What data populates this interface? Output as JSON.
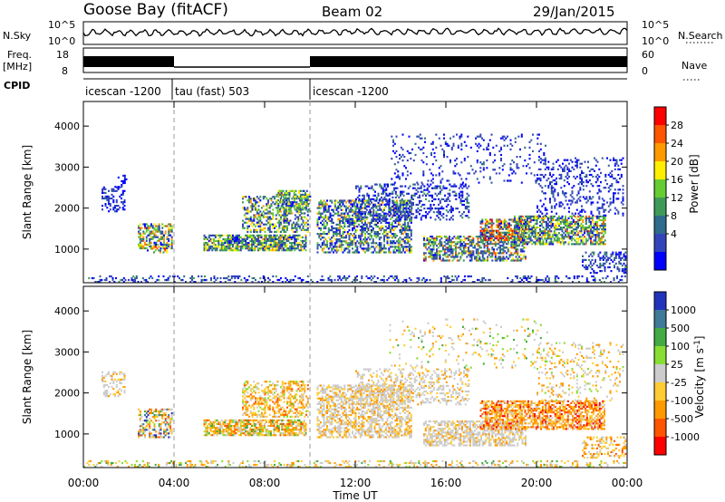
{
  "header": {
    "station": "Goose Bay (fitACF)",
    "beam": "Beam 02",
    "date": "29/Jan/2015"
  },
  "chart_data": [
    {
      "type": "line",
      "panel": "noise",
      "left_label": "N.Sky",
      "right_label": "N.Search",
      "left_ticks": [
        "10^5",
        "10^0"
      ],
      "right_ticks": [
        "10^5",
        "10^0"
      ],
      "ylim": [
        0,
        5
      ],
      "scale": "log"
    },
    {
      "type": "line",
      "panel": "frequency",
      "left_label_1": "Freq.",
      "left_label_2": "[MHz]",
      "right_label": "Nave",
      "left_ticks": [
        "18",
        "8"
      ],
      "right_ticks": [
        "60",
        "0"
      ],
      "ylim": [
        8,
        18
      ],
      "segments": [
        {
          "start_hour": 0.0,
          "end_hour": 4.0,
          "level": "high"
        },
        {
          "start_hour": 4.0,
          "end_hour": 10.0,
          "level": "low"
        },
        {
          "start_hour": 10.0,
          "end_hour": 24.0,
          "level": "high"
        }
      ]
    },
    {
      "type": "table",
      "panel": "cpid",
      "label": "CPID",
      "segments": [
        {
          "start_hour": 0.0,
          "end_hour": 4.0,
          "name": "icescan -1200"
        },
        {
          "start_hour": 4.0,
          "end_hour": 10.0,
          "name": "tau (fast) 503"
        },
        {
          "start_hour": 10.0,
          "end_hour": 24.0,
          "name": "icescan -1200"
        }
      ]
    },
    {
      "type": "heatmap",
      "panel": "power",
      "ylabel": "Slant Range [km]",
      "y_ticks": [
        "1000",
        "2000",
        "3000",
        "4000"
      ],
      "ylim": [
        180,
        4600
      ],
      "colorbar_label": "Power [dB]",
      "colorbar_ticks": [
        "28",
        "24",
        "20",
        "16",
        "12",
        "8",
        "4"
      ],
      "colors": [
        "#0000ff",
        "#3344bb",
        "#2f6b8a",
        "#3f9a5a",
        "#66cc33",
        "#ffee00",
        "#ff9900",
        "#ff5500",
        "#ff0000"
      ],
      "clusters": [
        {
          "h0": 0.8,
          "h1": 1.8,
          "r0": 1900,
          "r1": 2500,
          "density": 0.35,
          "weights": [
            4,
            4,
            1,
            0,
            0,
            0,
            0,
            0,
            0
          ]
        },
        {
          "h0": 1.3,
          "h1": 2.0,
          "r0": 2500,
          "r1": 2800,
          "density": 0.2,
          "weights": [
            4,
            3,
            0,
            0,
            0,
            0,
            0,
            0,
            0
          ]
        },
        {
          "h0": 2.4,
          "h1": 3.9,
          "r0": 1000,
          "r1": 1600,
          "density": 0.55,
          "weights": [
            2,
            3,
            2,
            2,
            2,
            1,
            2,
            1,
            0
          ]
        },
        {
          "h0": 2.8,
          "h1": 3.7,
          "r0": 900,
          "r1": 1100,
          "density": 0.5,
          "weights": [
            1,
            2,
            2,
            2,
            2,
            2,
            2,
            2,
            1
          ]
        },
        {
          "h0": 5.3,
          "h1": 9.8,
          "r0": 950,
          "r1": 1350,
          "density": 0.75,
          "weights": [
            1,
            3,
            2,
            3,
            3,
            2,
            1,
            0,
            0
          ]
        },
        {
          "h0": 7.0,
          "h1": 9.9,
          "r0": 1400,
          "r1": 2300,
          "density": 0.45,
          "weights": [
            1,
            3,
            2,
            3,
            2,
            2,
            1,
            0,
            0
          ]
        },
        {
          "h0": 8.5,
          "h1": 10.0,
          "r0": 1900,
          "r1": 2400,
          "density": 0.5,
          "weights": [
            1,
            2,
            2,
            3,
            3,
            2,
            1,
            0,
            0
          ]
        },
        {
          "h0": 10.3,
          "h1": 14.5,
          "r0": 900,
          "r1": 2200,
          "density": 0.55,
          "weights": [
            2,
            4,
            2,
            2,
            2,
            1,
            1,
            0,
            0
          ]
        },
        {
          "h0": 12.0,
          "h1": 17.0,
          "r0": 1700,
          "r1": 2600,
          "density": 0.3,
          "weights": [
            3,
            4,
            1,
            1,
            0,
            0,
            0,
            0,
            0
          ]
        },
        {
          "h0": 13.5,
          "h1": 20.5,
          "r0": 2600,
          "r1": 3800,
          "density": 0.1,
          "weights": [
            3,
            4,
            1,
            0,
            0,
            0,
            0,
            0,
            0
          ]
        },
        {
          "h0": 15.0,
          "h1": 19.5,
          "r0": 700,
          "r1": 1300,
          "density": 0.55,
          "weights": [
            1,
            4,
            2,
            2,
            2,
            1,
            1,
            1,
            0
          ]
        },
        {
          "h0": 17.5,
          "h1": 19.5,
          "r0": 1200,
          "r1": 1700,
          "density": 0.65,
          "weights": [
            1,
            2,
            2,
            2,
            2,
            2,
            3,
            2,
            2
          ]
        },
        {
          "h0": 19.0,
          "h1": 23.0,
          "r0": 1100,
          "r1": 1800,
          "density": 0.65,
          "weights": [
            1,
            3,
            2,
            3,
            3,
            2,
            1,
            1,
            0
          ]
        },
        {
          "h0": 20.0,
          "h1": 23.8,
          "r0": 1800,
          "r1": 3200,
          "density": 0.2,
          "weights": [
            3,
            4,
            1,
            0,
            0,
            0,
            0,
            0,
            0
          ]
        },
        {
          "h0": 22.0,
          "h1": 24.0,
          "r0": 400,
          "r1": 900,
          "density": 0.35,
          "weights": [
            2,
            4,
            1,
            1,
            0,
            0,
            0,
            0,
            0
          ]
        },
        {
          "h0": 0.0,
          "h1": 24.0,
          "r0": 180,
          "r1": 320,
          "density": 0.25,
          "weights": [
            3,
            4,
            2,
            1,
            0,
            0,
            0,
            0,
            0
          ]
        }
      ]
    },
    {
      "type": "heatmap",
      "panel": "velocity",
      "ylabel": "Slant Range [km]",
      "y_ticks": [
        "1000",
        "2000",
        "3000",
        "4000"
      ],
      "ylim": [
        180,
        4600
      ],
      "colorbar_label": "Velocity [m s^-1]",
      "colorbar_ticks": [
        "1000",
        "500",
        "100",
        "25",
        "-25",
        "-100",
        "-500",
        "-1000"
      ],
      "colors": [
        "#2233bb",
        "#3f7a99",
        "#44aa44",
        "#88dd33",
        "#cccccc",
        "#ffcc33",
        "#ff9900",
        "#ff5500",
        "#ff0000"
      ],
      "clusters": [
        {
          "h0": 0.8,
          "h1": 1.8,
          "r0": 1900,
          "r1": 2500,
          "density": 0.35,
          "weights": [
            0,
            0,
            0,
            0,
            5,
            1,
            1,
            0,
            0
          ]
        },
        {
          "h0": 2.4,
          "h1": 3.9,
          "r0": 900,
          "r1": 1600,
          "density": 0.5,
          "weights": [
            1,
            1,
            1,
            1,
            3,
            2,
            2,
            1,
            0
          ]
        },
        {
          "h0": 5.3,
          "h1": 9.8,
          "r0": 950,
          "r1": 1350,
          "density": 0.75,
          "weights": [
            0,
            0,
            1,
            1,
            2,
            3,
            4,
            1,
            0
          ]
        },
        {
          "h0": 7.0,
          "h1": 9.9,
          "r0": 1400,
          "r1": 2300,
          "density": 0.45,
          "weights": [
            0,
            0,
            0,
            1,
            2,
            3,
            4,
            1,
            0
          ]
        },
        {
          "h0": 10.3,
          "h1": 14.5,
          "r0": 900,
          "r1": 2200,
          "density": 0.55,
          "weights": [
            0,
            0,
            0,
            0,
            5,
            2,
            2,
            0,
            0
          ]
        },
        {
          "h0": 12.0,
          "h1": 17.0,
          "r0": 1700,
          "r1": 2600,
          "density": 0.3,
          "weights": [
            0,
            0,
            0,
            0,
            5,
            1,
            1,
            0,
            0
          ]
        },
        {
          "h0": 13.5,
          "h1": 20.5,
          "r0": 2600,
          "r1": 3800,
          "density": 0.08,
          "weights": [
            0,
            0,
            1,
            1,
            4,
            2,
            2,
            0,
            0
          ]
        },
        {
          "h0": 15.0,
          "h1": 19.5,
          "r0": 700,
          "r1": 1300,
          "density": 0.6,
          "weights": [
            0,
            0,
            0,
            0,
            7,
            1,
            1,
            0,
            0
          ]
        },
        {
          "h0": 17.5,
          "h1": 23.0,
          "r0": 1100,
          "r1": 1800,
          "density": 0.65,
          "weights": [
            0,
            0,
            0,
            0,
            2,
            2,
            4,
            2,
            1
          ]
        },
        {
          "h0": 20.0,
          "h1": 23.8,
          "r0": 1800,
          "r1": 3200,
          "density": 0.15,
          "weights": [
            0,
            0,
            0,
            1,
            3,
            2,
            2,
            0,
            0
          ]
        },
        {
          "h0": 22.0,
          "h1": 24.0,
          "r0": 400,
          "r1": 900,
          "density": 0.35,
          "weights": [
            0,
            0,
            0,
            0,
            2,
            3,
            3,
            1,
            0
          ]
        },
        {
          "h0": 0.0,
          "h1": 24.0,
          "r0": 180,
          "r1": 320,
          "density": 0.25,
          "weights": [
            0,
            0,
            1,
            1,
            3,
            2,
            2,
            0,
            0
          ]
        }
      ]
    }
  ],
  "x_axis": {
    "label": "Time UT",
    "ticks": [
      "00:00",
      "04:00",
      "08:00",
      "12:00",
      "16:00",
      "20:00",
      "00:00"
    ],
    "xlim": [
      0,
      24
    ]
  }
}
